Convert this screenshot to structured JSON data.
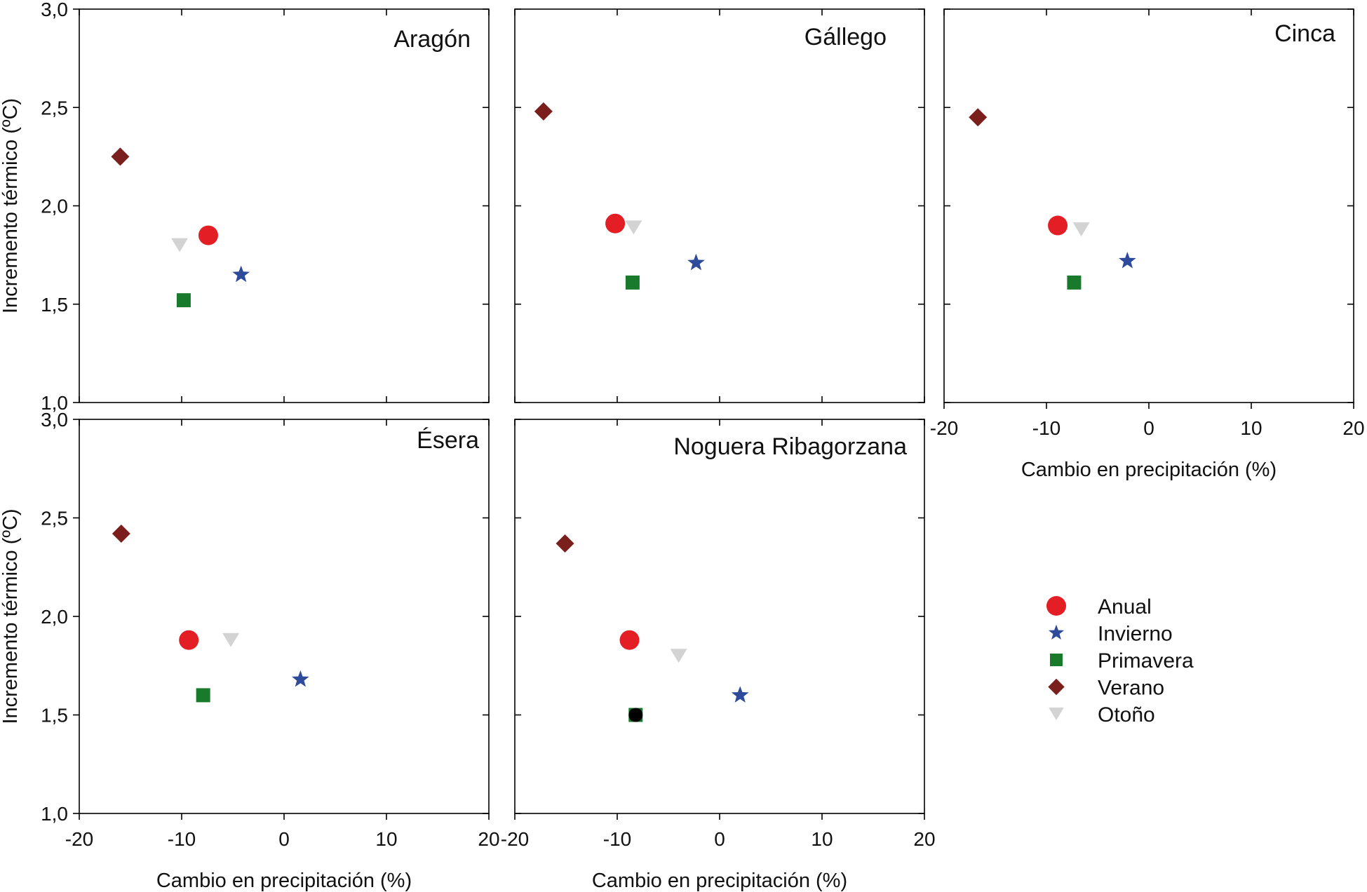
{
  "chart_data": [
    {
      "type": "scatter",
      "title": "Aragón",
      "xlabel": "",
      "ylabel": "Incremento térmico (ºC)",
      "xlim": [
        -20,
        20
      ],
      "ylim": [
        1.0,
        3.0
      ],
      "xticks": [],
      "yticks": [
        "1,0",
        "1,5",
        "2,0",
        "2,5",
        "3,0"
      ],
      "series": [
        {
          "name": "Anual",
          "x": -7.4,
          "y": 1.85
        },
        {
          "name": "Invierno",
          "x": -4.2,
          "y": 1.65
        },
        {
          "name": "Primavera",
          "x": -9.8,
          "y": 1.52
        },
        {
          "name": "Verano",
          "x": -16.0,
          "y": 2.25
        },
        {
          "name": "Otoño",
          "x": -10.2,
          "y": 1.8
        }
      ]
    },
    {
      "type": "scatter",
      "title": "Gállego",
      "xlabel": "",
      "ylabel": "",
      "xlim": [
        -20,
        20
      ],
      "ylim": [
        1.0,
        3.0
      ],
      "xticks": [],
      "yticks": [],
      "series": [
        {
          "name": "Anual",
          "x": -10.2,
          "y": 1.91
        },
        {
          "name": "Invierno",
          "x": -2.3,
          "y": 1.71
        },
        {
          "name": "Primavera",
          "x": -8.5,
          "y": 1.61
        },
        {
          "name": "Verano",
          "x": -17.2,
          "y": 2.48
        },
        {
          "name": "Otoño",
          "x": -8.4,
          "y": 1.89
        }
      ]
    },
    {
      "type": "scatter",
      "title": "Cinca",
      "xlabel": "Cambio en precipitación (%)",
      "ylabel": "",
      "xlim": [
        -20,
        20
      ],
      "ylim": [
        1.0,
        3.0
      ],
      "xticks": [
        "-20",
        "-10",
        "0",
        "10",
        "20"
      ],
      "yticks": [],
      "series": [
        {
          "name": "Anual",
          "x": -8.9,
          "y": 1.9
        },
        {
          "name": "Invierno",
          "x": -2.1,
          "y": 1.72
        },
        {
          "name": "Primavera",
          "x": -7.3,
          "y": 1.61
        },
        {
          "name": "Verano",
          "x": -16.7,
          "y": 2.45
        },
        {
          "name": "Otoño",
          "x": -6.6,
          "y": 1.88
        }
      ]
    },
    {
      "type": "scatter",
      "title": "Ésera",
      "xlabel": "Cambio en precipitación (%)",
      "ylabel": "Incremento térmico (ºC)",
      "xlim": [
        -20,
        20
      ],
      "ylim": [
        1.0,
        3.0
      ],
      "xticks": [
        "-20",
        "-10",
        "0",
        "10",
        "20"
      ],
      "yticks": [
        "1,0",
        "1,5",
        "2,0",
        "2,5",
        "3,0"
      ],
      "series": [
        {
          "name": "Anual",
          "x": -9.3,
          "y": 1.88
        },
        {
          "name": "Invierno",
          "x": 1.6,
          "y": 1.68
        },
        {
          "name": "Primavera",
          "x": -7.9,
          "y": 1.6
        },
        {
          "name": "Verano",
          "x": -15.9,
          "y": 2.42
        },
        {
          "name": "Otoño",
          "x": -5.2,
          "y": 1.88
        }
      ]
    },
    {
      "type": "scatter",
      "title": "Noguera Ribagorzana",
      "xlabel": "Cambio en precipitación (%)",
      "ylabel": "",
      "xlim": [
        -20,
        20
      ],
      "ylim": [
        1.0,
        3.0
      ],
      "xticks": [
        "-20",
        "-10",
        "0",
        "10",
        "20"
      ],
      "yticks": [],
      "series": [
        {
          "name": "Anual",
          "x": -8.8,
          "y": 1.88
        },
        {
          "name": "Invierno",
          "x": 2.0,
          "y": 1.6
        },
        {
          "name": "Primavera",
          "x": -8.2,
          "y": 1.5
        },
        {
          "name": "Verano",
          "x": -15.1,
          "y": 2.37
        },
        {
          "name": "Otoño",
          "x": -4.0,
          "y": 1.8
        }
      ]
    }
  ],
  "legend": {
    "placement": "bottom-right",
    "items": [
      {
        "label": "Anual",
        "marker": "circle",
        "color": "#e31e24"
      },
      {
        "label": "Invierno",
        "marker": "star",
        "color": "#2e4a9a"
      },
      {
        "label": "Primavera",
        "marker": "square",
        "color": "#1a7a2c"
      },
      {
        "label": "Verano",
        "marker": "diamond",
        "color": "#7b1f1d"
      },
      {
        "label": "Otoño",
        "marker": "triangle-down",
        "color": "#d3d3d3"
      }
    ]
  }
}
